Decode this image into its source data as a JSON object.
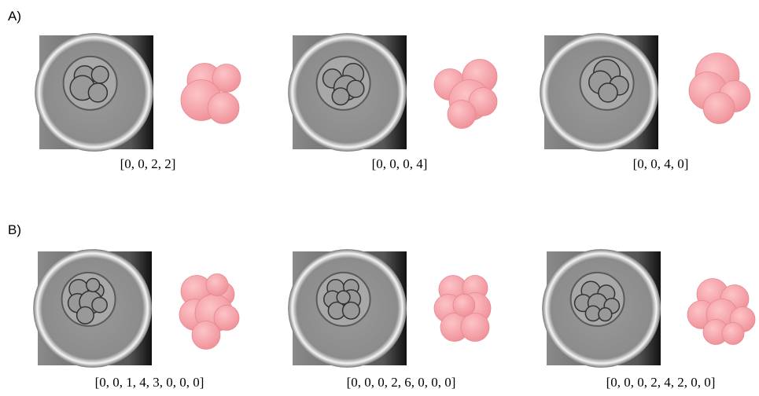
{
  "panels": [
    {
      "label": "A)",
      "items": [
        {
          "caption": "[0, 0, 2, 2]"
        },
        {
          "caption": "[0, 0, 0, 4]"
        },
        {
          "caption": "[0, 0, 4, 0]"
        }
      ]
    },
    {
      "label": "B)",
      "items": [
        {
          "caption": "[0, 0, 1, 4, 3, 0, 0, 0]"
        },
        {
          "caption": "[0, 0, 0, 2, 6, 0, 0, 0]"
        },
        {
          "caption": "[0, 0, 0, 2, 4, 2, 0, 0]"
        }
      ]
    }
  ]
}
